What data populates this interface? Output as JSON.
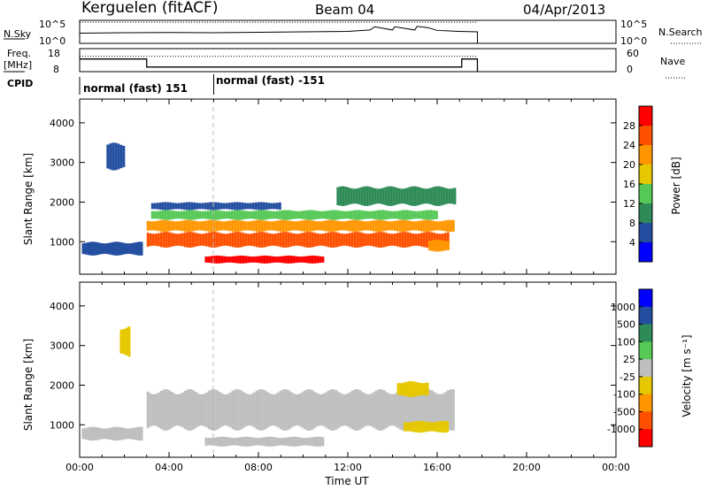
{
  "header": {
    "station": "Kerguelen (fitACF)",
    "beam": "Beam 04",
    "date": "04/Apr/2013"
  },
  "nsky_panel": {
    "left_label": "N.Sky",
    "left_ticks": [
      "10^5",
      "10^0"
    ],
    "right_ticks": [
      "10^5",
      "10^0"
    ],
    "right_label": "N.Search"
  },
  "freq_panel": {
    "left_label_1": "Freq.",
    "left_label_2": "[MHz]",
    "left_ticks": [
      "18",
      "8"
    ],
    "right_ticks": [
      "60",
      "0"
    ],
    "right_label": "Nave",
    "freq_steps_hours": [
      [
        0,
        13.5
      ],
      [
        3,
        13.5
      ],
      [
        3,
        10
      ],
      [
        17.1,
        10
      ],
      [
        17.1,
        13.5
      ],
      [
        17.8,
        13.5
      ]
    ],
    "nave_hours": [
      [
        0,
        40
      ],
      [
        3,
        40
      ],
      [
        3,
        40
      ],
      [
        17.1,
        40
      ],
      [
        17.1,
        40
      ],
      [
        17.8,
        40
      ]
    ]
  },
  "cpid": {
    "label": "CPID",
    "mode_1": "normal (fast) 151",
    "mode_2": "normal (fast) -151",
    "switch_hour": 6
  },
  "colors": {
    "power_scale": [
      "#0000ff",
      "#234ea0",
      "#2e8b57",
      "#55c855",
      "#e6c800",
      "#ff9600",
      "#ff5000",
      "#ff0000"
    ],
    "velocity_scale": [
      "#0000ff",
      "#234ea0",
      "#2e8b57",
      "#55c855",
      "#bebebe",
      "#e6c800",
      "#ff9600",
      "#ff5000",
      "#ff0000"
    ],
    "ground_scatter": "#bebebe"
  },
  "chart_data": [
    {
      "type": "line",
      "title": "N.Sky / N.Search",
      "xlabel": "",
      "ylabel": "N.Sky",
      "xlim": [
        0,
        24
      ],
      "data_end_hour": 17.8,
      "series": [
        {
          "name": "N.Sky",
          "x": [
            0,
            2,
            4,
            6,
            8,
            10,
            11,
            12,
            13,
            13.2,
            14,
            14.1,
            15,
            15.1,
            15.6,
            16,
            17,
            17.8
          ],
          "y": [
            2.2,
            2.3,
            2.35,
            2.3,
            2.4,
            2.5,
            2.55,
            2.6,
            2.9,
            3.6,
            2.9,
            3.6,
            2.9,
            3.7,
            3.4,
            2.8,
            2.6,
            2.5
          ]
        },
        {
          "name": "N.Search",
          "x": [
            0,
            17.8
          ],
          "y": [
            4.6,
            4.6
          ]
        }
      ]
    },
    {
      "type": "heatmap",
      "title": "Power",
      "xlabel": "",
      "ylabel": "Slant Range [km]",
      "colorbar_label": "Power [dB]",
      "colorbar_ticks": [
        "28",
        "24",
        "20",
        "16",
        "12",
        "8",
        "4"
      ],
      "x_ticks": [
        "00:00",
        "04:00",
        "08:00",
        "12:00",
        "16:00",
        "20:00",
        "00:00"
      ],
      "y_ticks": [
        "1000",
        "2000",
        "3000",
        "4000"
      ],
      "xlim": [
        0,
        24
      ],
      "ylim": [
        180,
        4600
      ],
      "bands": [
        {
          "level": 26,
          "t0": 3.0,
          "t1": 16.5,
          "r_lo": 850,
          "r_hi": 1250
        },
        {
          "level": 20,
          "t0": 3.0,
          "t1": 16.8,
          "r_lo": 1250,
          "r_hi": 1550
        },
        {
          "level": 12,
          "t0": 3.2,
          "t1": 16.0,
          "r_lo": 1550,
          "r_hi": 1800
        },
        {
          "level": 4,
          "t0": 3.2,
          "t1": 9.0,
          "r_lo": 1800,
          "r_hi": 2000
        },
        {
          "level": 28,
          "t0": 5.6,
          "t1": 11.0,
          "r_lo": 450,
          "r_hi": 650
        },
        {
          "level": 6,
          "t0": 0.1,
          "t1": 2.8,
          "r_lo": 650,
          "r_hi": 1000
        },
        {
          "level": 22,
          "t0": 15.6,
          "t1": 16.5,
          "r_lo": 750,
          "r_hi": 1050
        },
        {
          "level": 6,
          "t0": 1.2,
          "t1": 2.0,
          "r_lo": 2800,
          "r_hi": 3500
        },
        {
          "level": 8,
          "t0": 11.5,
          "t1": 16.8,
          "r_lo": 1900,
          "r_hi": 2400
        }
      ]
    },
    {
      "type": "heatmap",
      "title": "Velocity",
      "xlabel": "Time UT",
      "ylabel": "Slant Range [km]",
      "colorbar_label": "Velocity [m s⁻¹]",
      "colorbar_ticks": [
        "1000",
        "500",
        "100",
        "25",
        "-25",
        "-100",
        "-500",
        "-1000"
      ],
      "x_ticks": [
        "00:00",
        "04:00",
        "08:00",
        "12:00",
        "16:00",
        "20:00",
        "00:00"
      ],
      "y_ticks": [
        "1000",
        "2000",
        "3000",
        "4000"
      ],
      "xlim": [
        0,
        24
      ],
      "ylim": [
        180,
        4600
      ],
      "bands": [
        {
          "level": 0,
          "t0": 3.0,
          "t1": 16.8,
          "r_lo": 850,
          "r_hi": 1900
        },
        {
          "level": 0,
          "t0": 5.6,
          "t1": 11.0,
          "r_lo": 450,
          "r_hi": 700
        },
        {
          "level": -100,
          "t0": 14.5,
          "t1": 16.5,
          "r_lo": 800,
          "r_hi": 1100
        },
        {
          "level": -100,
          "t0": 14.2,
          "t1": 15.6,
          "r_lo": 1700,
          "r_hi": 2100
        },
        {
          "level": -100,
          "t0": 1.8,
          "t1": 2.3,
          "r_lo": 2700,
          "r_hi": 3500
        },
        {
          "level": 0,
          "t0": 0.1,
          "t1": 2.8,
          "r_lo": 600,
          "r_hi": 950
        }
      ]
    }
  ]
}
